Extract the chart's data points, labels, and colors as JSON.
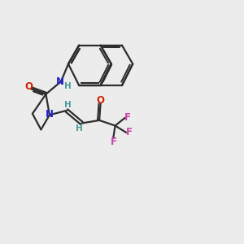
{
  "bg_color": "#ececec",
  "bond_color": "#2d2d2d",
  "N_color": "#2222cc",
  "O_color": "#cc2200",
  "F_color": "#cc44aa",
  "H_color": "#4a9999",
  "lw": 1.6,
  "figsize": [
    3.0,
    3.0
  ],
  "dpi": 100,
  "xlim": [
    0,
    10
  ],
  "ylim": [
    0,
    10
  ]
}
